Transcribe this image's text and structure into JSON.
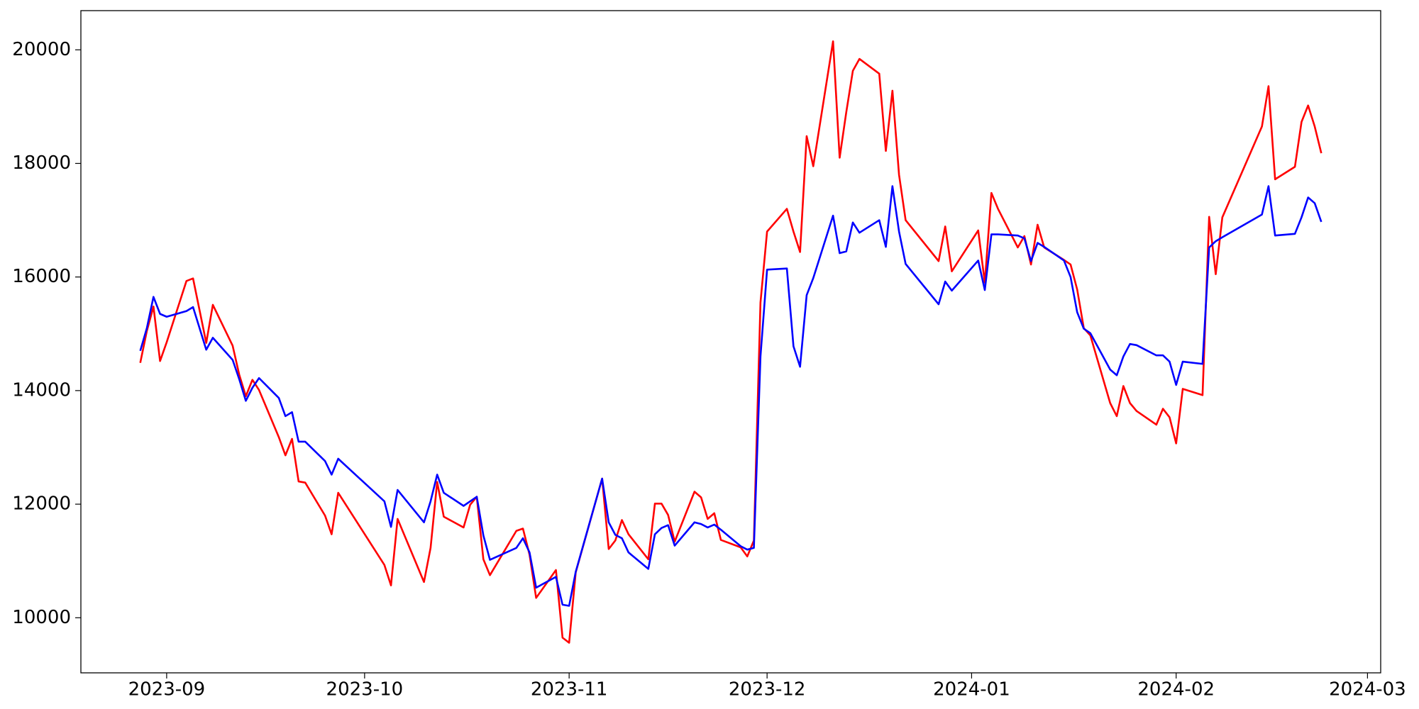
{
  "chart_data": {
    "type": "line",
    "x": [
      "2023-08-28",
      "2023-08-29",
      "2023-08-30",
      "2023-08-31",
      "2023-09-01",
      "2023-09-04",
      "2023-09-05",
      "2023-09-07",
      "2023-09-08",
      "2023-09-11",
      "2023-09-12",
      "2023-09-13",
      "2023-09-14",
      "2023-09-15",
      "2023-09-18",
      "2023-09-19",
      "2023-09-20",
      "2023-09-21",
      "2023-09-22",
      "2023-09-25",
      "2023-09-26",
      "2023-09-27",
      "2023-10-04",
      "2023-10-05",
      "2023-10-06",
      "2023-10-10",
      "2023-10-11",
      "2023-10-12",
      "2023-10-13",
      "2023-10-16",
      "2023-10-17",
      "2023-10-18",
      "2023-10-19",
      "2023-10-20",
      "2023-10-24",
      "2023-10-25",
      "2023-10-26",
      "2023-10-27",
      "2023-10-30",
      "2023-10-31",
      "2023-11-01",
      "2023-11-02",
      "2023-11-06",
      "2023-11-07",
      "2023-11-08",
      "2023-11-09",
      "2023-11-10",
      "2023-11-13",
      "2023-11-14",
      "2023-11-15",
      "2023-11-16",
      "2023-11-17",
      "2023-11-20",
      "2023-11-21",
      "2023-11-22",
      "2023-11-23",
      "2023-11-24",
      "2023-11-27",
      "2023-11-28",
      "2023-11-29",
      "2023-11-30",
      "2023-12-01",
      "2023-12-04",
      "2023-12-05",
      "2023-12-06",
      "2023-12-07",
      "2023-12-08",
      "2023-12-11",
      "2023-12-12",
      "2023-12-13",
      "2023-12-14",
      "2023-12-15",
      "2023-12-18",
      "2023-12-19",
      "2023-12-20",
      "2023-12-21",
      "2023-12-22",
      "2023-12-27",
      "2023-12-28",
      "2023-12-29",
      "2024-01-02",
      "2024-01-03",
      "2024-01-04",
      "2024-01-05",
      "2024-01-08",
      "2024-01-09",
      "2024-01-10",
      "2024-01-11",
      "2024-01-12",
      "2024-01-15",
      "2024-01-16",
      "2024-01-17",
      "2024-01-18",
      "2024-01-19",
      "2024-01-22",
      "2024-01-23",
      "2024-01-24",
      "2024-01-25",
      "2024-01-26",
      "2024-01-29",
      "2024-01-30",
      "2024-01-31",
      "2024-02-01",
      "2024-02-02",
      "2024-02-05",
      "2024-02-06",
      "2024-02-07",
      "2024-02-08",
      "2024-02-14",
      "2024-02-15",
      "2024-02-16",
      "2024-02-19",
      "2024-02-20",
      "2024-02-21",
      "2024-02-22",
      "2024-02-23"
    ],
    "series": [
      {
        "color": "#ff0000",
        "values": [
          14489,
          15050,
          15480,
          14520,
          14850,
          15930,
          15975,
          14840,
          15510,
          14790,
          14280,
          13900,
          14190,
          14010,
          13180,
          12860,
          13150,
          12400,
          12380,
          11800,
          11470,
          12200,
          10930,
          10570,
          11740,
          10630,
          11230,
          12390,
          11780,
          11590,
          11990,
          12130,
          11030,
          10750,
          11530,
          11570,
          11110,
          10350,
          10840,
          9650,
          9560,
          10800,
          12450,
          11210,
          11360,
          11720,
          11470,
          11030,
          12010,
          12010,
          11810,
          11340,
          12220,
          12120,
          11740,
          11840,
          11370,
          11240,
          11080,
          11360,
          15550,
          16800,
          17200,
          16800,
          16440,
          18480,
          17950,
          20150,
          18100,
          18900,
          19630,
          19840,
          19580,
          18220,
          19280,
          17800,
          17000,
          16280,
          16890,
          16100,
          16820,
          15900,
          17480,
          17200,
          16520,
          16720,
          16220,
          16920,
          16520,
          16300,
          16220,
          15780,
          15100,
          14970,
          13780,
          13550,
          14080,
          13780,
          13640,
          13400,
          13680,
          13530,
          13070,
          14030,
          13920,
          17060,
          16050,
          17050,
          18650,
          19360,
          17720,
          17940,
          18730,
          19020,
          18650,
          18180
        ]
      },
      {
        "color": "#0000ff",
        "values": [
          14700,
          15100,
          15650,
          15350,
          15300,
          15400,
          15470,
          14720,
          14930,
          14540,
          14200,
          13820,
          14050,
          14220,
          13870,
          13550,
          13620,
          13100,
          13100,
          12760,
          12520,
          12800,
          12050,
          11600,
          12250,
          11680,
          12050,
          12520,
          12200,
          11970,
          12050,
          12130,
          11450,
          11020,
          11230,
          11400,
          11150,
          10530,
          10720,
          10230,
          10210,
          10810,
          12450,
          11680,
          11460,
          11400,
          11150,
          10860,
          11470,
          11580,
          11630,
          11270,
          11680,
          11650,
          11590,
          11640,
          11550,
          11260,
          11200,
          11230,
          14600,
          16130,
          16150,
          14780,
          14420,
          15680,
          15980,
          17080,
          16420,
          16450,
          16960,
          16780,
          17000,
          16530,
          17600,
          16800,
          16230,
          15520,
          15920,
          15760,
          16290,
          15770,
          16750,
          16750,
          16730,
          16680,
          16280,
          16600,
          16530,
          16290,
          16000,
          15380,
          15090,
          15010,
          14370,
          14270,
          14600,
          14820,
          14800,
          14620,
          14620,
          14510,
          14100,
          14510,
          14470,
          16520,
          16630,
          16700,
          17100,
          17600,
          16730,
          16760,
          17050,
          17400,
          17300,
          16970
        ]
      }
    ],
    "xlim": [
      "2023-08-19",
      "2024-03-03"
    ],
    "xticks": [
      {
        "value": "2023-09-01",
        "label": "2023-09"
      },
      {
        "value": "2023-10-01",
        "label": "2023-10"
      },
      {
        "value": "2023-11-01",
        "label": "2023-11"
      },
      {
        "value": "2023-12-01",
        "label": "2023-12"
      },
      {
        "value": "2024-01-01",
        "label": "2024-01"
      },
      {
        "value": "2024-02-01",
        "label": "2024-02"
      },
      {
        "value": "2024-03-01",
        "label": "2024-03"
      }
    ],
    "ylim": [
      9030,
      20690
    ],
    "yticks": [
      10000,
      12000,
      14000,
      16000,
      18000,
      20000
    ],
    "grid": false
  }
}
